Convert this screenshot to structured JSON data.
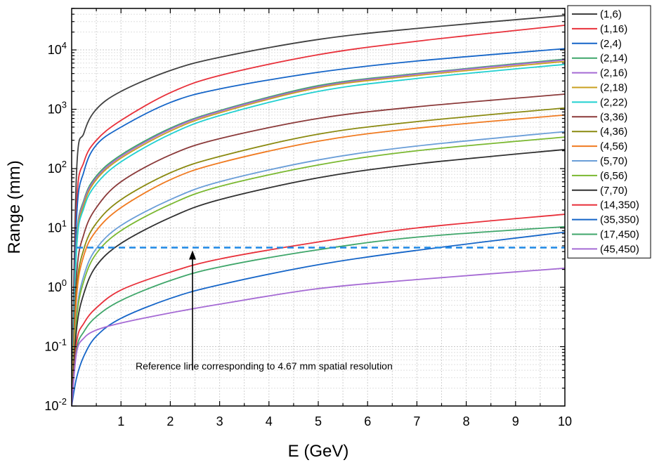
{
  "chart_data": {
    "type": "line",
    "xlabel": "E (GeV)",
    "ylabel": "Range (mm)",
    "xlim": [
      0,
      10
    ],
    "ylim": [
      0.01,
      50000
    ],
    "yscale": "log",
    "grid": true,
    "legend_position": "right",
    "x_ticks": [
      "1",
      "2",
      "3",
      "4",
      "5",
      "6",
      "7",
      "8",
      "9",
      "10"
    ],
    "y_ticks": [
      {
        "value": 0.01,
        "base": "10",
        "exp": "-2"
      },
      {
        "value": 0.1,
        "base": "10",
        "exp": "-1"
      },
      {
        "value": 1,
        "base": "10",
        "exp": "0"
      },
      {
        "value": 10,
        "base": "10",
        "exp": "1"
      },
      {
        "value": 100,
        "base": "10",
        "exp": "2"
      },
      {
        "value": 1000,
        "base": "10",
        "exp": "3"
      },
      {
        "value": 10000,
        "base": "10",
        "exp": "4"
      }
    ],
    "series": [
      {
        "name": "(1,6)",
        "color": "#404040",
        "x": [
          0,
          0.1,
          0.25,
          0.5,
          1,
          2,
          3,
          5,
          7,
          10
        ],
        "y": [
          0.01,
          90,
          400,
          1000,
          2000,
          4500,
          7500,
          15000,
          23000,
          38000
        ]
      },
      {
        "name": "(1,16)",
        "color": "#e8303a",
        "x": [
          0,
          0.1,
          0.25,
          0.5,
          1,
          2,
          3,
          5,
          7,
          10
        ],
        "y": [
          0.01,
          25,
          130,
          300,
          650,
          1900,
          3700,
          8300,
          14000,
          26000
        ]
      },
      {
        "name": "(2,4)",
        "color": "#1565c8",
        "x": [
          0,
          0.1,
          0.25,
          0.5,
          1,
          2,
          3,
          5,
          7,
          10
        ],
        "y": [
          0.01,
          15,
          90,
          250,
          500,
          1300,
          2200,
          4200,
          6500,
          10500
        ]
      },
      {
        "name": "(2,14)",
        "color": "#3fa66a",
        "x": [
          0,
          0.1,
          0.25,
          0.5,
          1,
          2,
          3,
          5,
          7,
          10
        ],
        "y": [
          0.01,
          6,
          30,
          75,
          170,
          480,
          950,
          2500,
          4000,
          7000
        ]
      },
      {
        "name": "(2,16)",
        "color": "#a56ad4",
        "x": [
          0,
          0.1,
          0.25,
          0.5,
          1,
          2,
          3,
          5,
          7,
          10
        ],
        "y": [
          0.01,
          5.5,
          28,
          70,
          160,
          460,
          920,
          2400,
          3900,
          6800
        ]
      },
      {
        "name": "(2,18)",
        "color": "#c9a020",
        "x": [
          0,
          0.1,
          0.25,
          0.5,
          1,
          2,
          3,
          5,
          7,
          10
        ],
        "y": [
          0.01,
          5,
          25,
          65,
          150,
          430,
          870,
          2300,
          3700,
          6400
        ]
      },
      {
        "name": "(2,22)",
        "color": "#20d0d0",
        "x": [
          0,
          0.1,
          0.25,
          0.5,
          1,
          2,
          3,
          5,
          7,
          10
        ],
        "y": [
          0.01,
          4.5,
          22,
          55,
          130,
          380,
          780,
          2000,
          3300,
          5700
        ]
      },
      {
        "name": "(3,36)",
        "color": "#8b3a3a",
        "x": [
          0,
          0.1,
          0.25,
          0.5,
          1,
          2,
          3,
          5,
          7,
          10
        ],
        "y": [
          0.01,
          1.6,
          8,
          22,
          60,
          170,
          320,
          700,
          1100,
          1800
        ]
      },
      {
        "name": "(4,36)",
        "color": "#8a8a10",
        "x": [
          0,
          0.1,
          0.25,
          0.5,
          1,
          2,
          3,
          5,
          7,
          10
        ],
        "y": [
          0.01,
          0.9,
          4.5,
          12,
          30,
          85,
          160,
          380,
          620,
          1050
        ]
      },
      {
        "name": "(4,56)",
        "color": "#f07a20",
        "x": [
          0,
          0.1,
          0.25,
          0.5,
          1,
          2,
          3,
          5,
          7,
          10
        ],
        "y": [
          0.01,
          0.7,
          3.5,
          9,
          22,
          65,
          125,
          290,
          480,
          800
        ]
      },
      {
        "name": "(5,70)",
        "color": "#6a9ed8",
        "x": [
          0,
          0.1,
          0.25,
          0.5,
          1,
          2,
          3,
          5,
          7,
          10
        ],
        "y": [
          0.01,
          0.35,
          1.6,
          4.5,
          11,
          30,
          60,
          140,
          240,
          420
        ]
      },
      {
        "name": "(6,56)",
        "color": "#7ab830",
        "x": [
          0,
          0.1,
          0.25,
          0.5,
          1,
          2,
          3,
          5,
          7,
          10
        ],
        "y": [
          0.01,
          0.3,
          1.3,
          3.7,
          9,
          25,
          50,
          115,
          200,
          340
        ]
      },
      {
        "name": "(7,70)",
        "color": "#303030",
        "x": [
          0,
          0.1,
          0.25,
          0.5,
          1,
          2,
          3,
          5,
          7,
          10
        ],
        "y": [
          0.01,
          0.2,
          0.8,
          2.3,
          5.5,
          15,
          30,
          70,
          120,
          210
        ]
      },
      {
        "name": "(14,350)",
        "color": "#e8303a",
        "x": [
          0,
          0.1,
          0.25,
          0.5,
          1,
          2,
          3,
          5,
          7,
          10
        ],
        "y": [
          0.01,
          0.12,
          0.25,
          0.45,
          0.9,
          1.8,
          3,
          5.8,
          10,
          17
        ]
      },
      {
        "name": "(35,350)",
        "color": "#1565c8",
        "x": [
          0,
          0.1,
          0.25,
          0.5,
          1,
          2,
          3,
          5,
          7,
          10
        ],
        "y": [
          0.01,
          0.03,
          0.07,
          0.15,
          0.3,
          0.65,
          1.1,
          2.4,
          4.2,
          8.5
        ]
      },
      {
        "name": "(17,450)",
        "color": "#3fa66a",
        "x": [
          0,
          0.1,
          0.25,
          0.5,
          1,
          2,
          3,
          5,
          7,
          10
        ],
        "y": [
          0.01,
          0.09,
          0.18,
          0.32,
          0.6,
          1.3,
          2.2,
          4.3,
          7,
          10.5
        ]
      },
      {
        "name": "(45,450)",
        "color": "#a56ad4",
        "x": [
          0,
          0.1,
          0.25,
          0.5,
          1,
          2,
          3,
          5,
          7,
          10
        ],
        "y": [
          0.01,
          0.08,
          0.14,
          0.19,
          0.25,
          0.37,
          0.52,
          0.95,
          1.35,
          2.1
        ]
      }
    ],
    "reference_line": {
      "y": 4.67,
      "x_start": 0.1,
      "x_end": 10,
      "color": "#1e88e5"
    },
    "annotation": {
      "text": "Reference line corresponding to 4.67 mm spatial resolution",
      "arrow_x": 2.45,
      "arrow_from_y": 0.04,
      "arrow_to_y": 4.67
    }
  }
}
